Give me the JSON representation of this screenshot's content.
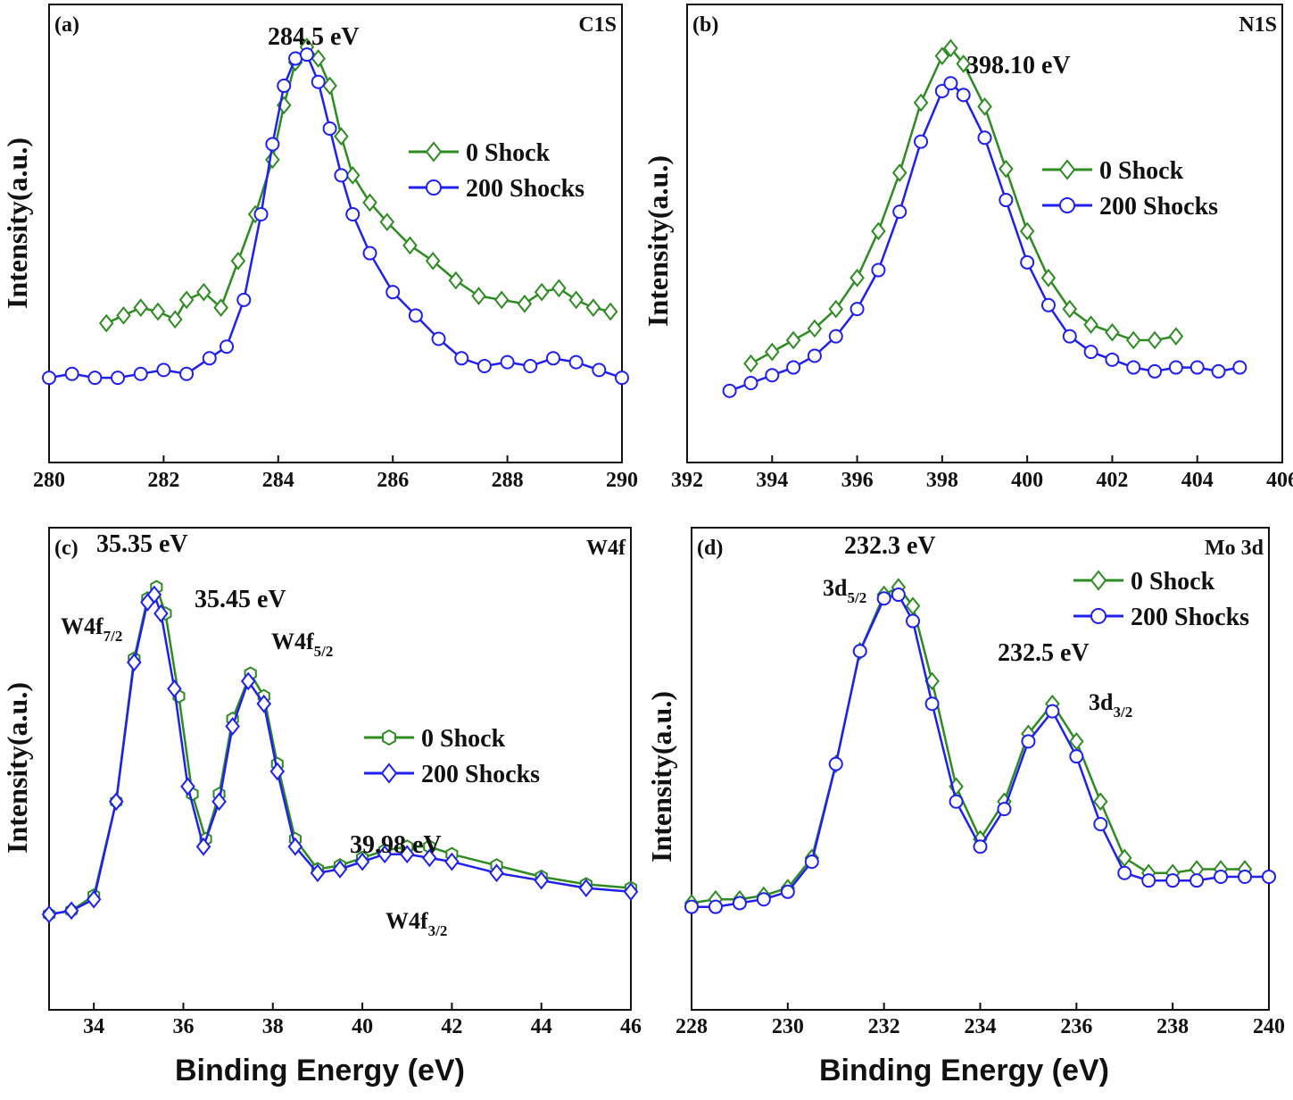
{
  "colors": {
    "series0": "#2e8b22",
    "series1": "#1f1fef",
    "axis": "#111111"
  },
  "chart_data": [
    {
      "id": "a",
      "type": "line",
      "panel_label": "(a)",
      "title": "C1S",
      "xlabel": "",
      "ylabel": "Intensity(a.u.)",
      "xlim": [
        280,
        290
      ],
      "ylim": [
        0,
        1
      ],
      "xticks": [
        "280",
        "282",
        "284",
        "286",
        "288",
        "290"
      ],
      "legend": {
        "position": "top-right",
        "entries": [
          "0 Shock",
          "200 Shocks"
        ]
      },
      "annotations": [
        {
          "text": "284.5 eV",
          "x": 284.5,
          "y": 0.98
        }
      ],
      "series": [
        {
          "name": "0 Shock",
          "marker": "diamond",
          "x": [
            281.0,
            281.3,
            281.6,
            281.9,
            282.2,
            282.4,
            282.7,
            283.0,
            283.3,
            283.6,
            283.9,
            284.1,
            284.3,
            284.5,
            284.7,
            284.9,
            285.1,
            285.3,
            285.6,
            285.9,
            286.3,
            286.7,
            287.1,
            287.5,
            287.9,
            288.3,
            288.6,
            288.9,
            289.2,
            289.5,
            289.8
          ],
          "values": [
            0.24,
            0.26,
            0.28,
            0.27,
            0.25,
            0.3,
            0.32,
            0.28,
            0.4,
            0.52,
            0.66,
            0.8,
            0.91,
            0.95,
            0.92,
            0.85,
            0.72,
            0.62,
            0.55,
            0.5,
            0.44,
            0.4,
            0.35,
            0.31,
            0.3,
            0.29,
            0.32,
            0.33,
            0.3,
            0.28,
            0.27
          ]
        },
        {
          "name": "200 Shocks",
          "marker": "circle",
          "x": [
            280.0,
            280.4,
            280.8,
            281.2,
            281.6,
            282.0,
            282.4,
            282.8,
            283.1,
            283.4,
            283.7,
            283.9,
            284.1,
            284.3,
            284.5,
            284.7,
            284.9,
            285.1,
            285.3,
            285.6,
            286.0,
            286.4,
            286.8,
            287.2,
            287.6,
            288.0,
            288.4,
            288.8,
            289.2,
            289.6,
            290.0
          ],
          "values": [
            0.1,
            0.11,
            0.1,
            0.1,
            0.11,
            0.12,
            0.11,
            0.15,
            0.18,
            0.3,
            0.52,
            0.7,
            0.85,
            0.92,
            0.93,
            0.86,
            0.74,
            0.62,
            0.52,
            0.42,
            0.32,
            0.26,
            0.2,
            0.15,
            0.13,
            0.14,
            0.13,
            0.15,
            0.14,
            0.12,
            0.1
          ]
        }
      ]
    },
    {
      "id": "b",
      "type": "line",
      "panel_label": "(b)",
      "title": "N1S",
      "xlabel": "",
      "ylabel": "Intensity(a.u.)",
      "xlim": [
        392,
        406
      ],
      "ylim": [
        0,
        1
      ],
      "xticks": [
        "392",
        "394",
        "396",
        "398",
        "400",
        "402",
        "404",
        "406"
      ],
      "legend": {
        "position": "center-right",
        "entries": [
          "0 Shock",
          "200 Shocks"
        ]
      },
      "annotations": [
        {
          "text": "398.10 eV",
          "x": 398.5,
          "y": 0.97
        }
      ],
      "series": [
        {
          "name": "0 Shock",
          "marker": "diamond",
          "x": [
            393.5,
            394.0,
            394.5,
            395.0,
            395.5,
            396.0,
            396.5,
            397.0,
            397.5,
            398.0,
            398.2,
            398.5,
            399.0,
            399.5,
            400.0,
            400.5,
            401.0,
            401.5,
            402.0,
            402.5,
            403.0,
            403.5
          ],
          "values": [
            0.16,
            0.19,
            0.22,
            0.25,
            0.3,
            0.38,
            0.5,
            0.65,
            0.83,
            0.95,
            0.97,
            0.93,
            0.82,
            0.66,
            0.5,
            0.38,
            0.3,
            0.26,
            0.24,
            0.22,
            0.22,
            0.23
          ]
        },
        {
          "name": "200 Shocks",
          "marker": "circle",
          "x": [
            393.0,
            393.5,
            394.0,
            394.5,
            395.0,
            395.5,
            396.0,
            396.5,
            397.0,
            397.5,
            398.0,
            398.2,
            398.5,
            399.0,
            399.5,
            400.0,
            400.5,
            401.0,
            401.5,
            402.0,
            402.5,
            403.0,
            403.5,
            404.0,
            404.5,
            405.0
          ],
          "values": [
            0.09,
            0.11,
            0.13,
            0.15,
            0.18,
            0.23,
            0.3,
            0.4,
            0.55,
            0.73,
            0.86,
            0.88,
            0.85,
            0.74,
            0.58,
            0.42,
            0.31,
            0.23,
            0.19,
            0.17,
            0.15,
            0.14,
            0.15,
            0.15,
            0.14,
            0.15
          ]
        }
      ]
    },
    {
      "id": "c",
      "type": "line",
      "panel_label": "(c)",
      "title": "W4f",
      "xlabel": "Binding Energy (eV)",
      "ylabel": "Intensity(a.u.)",
      "xlim": [
        33,
        46
      ],
      "ylim": [
        0,
        1
      ],
      "xticks": [
        "34",
        "36",
        "38",
        "40",
        "42",
        "44",
        "46"
      ],
      "legend": {
        "position": "center-right",
        "entries": [
          "0 Shock",
          "200 Shocks"
        ]
      },
      "annotations": [
        {
          "text": "35.35 eV",
          "x": 35.4,
          "y": 1.0
        },
        {
          "text": "35.45 eV",
          "x": 37.6,
          "y": 0.88
        },
        {
          "text": "39.98 eV",
          "x": 40.8,
          "y": 0.33
        }
      ],
      "peak_labels": [
        {
          "main": "W4f",
          "sub": "7/2",
          "x": 34.3,
          "y": 0.78
        },
        {
          "main": "W4f",
          "sub": "5/2",
          "x": 38.5,
          "y": 0.74
        },
        {
          "main": "W4f",
          "sub": "3/2",
          "x": 41.5,
          "y": 0.08
        }
      ],
      "series": [
        {
          "name": "0 Shock",
          "marker": "hexagon",
          "x": [
            33.0,
            33.5,
            34.0,
            34.5,
            34.9,
            35.2,
            35.4,
            35.6,
            35.9,
            36.2,
            36.5,
            36.8,
            37.1,
            37.5,
            37.8,
            38.1,
            38.5,
            39.0,
            39.5,
            40.0,
            40.5,
            41.0,
            41.5,
            42.0,
            43.0,
            44.0,
            45.0,
            46.0
          ],
          "values": [
            0.1,
            0.11,
            0.15,
            0.4,
            0.78,
            0.94,
            0.97,
            0.9,
            0.68,
            0.42,
            0.3,
            0.42,
            0.62,
            0.74,
            0.68,
            0.5,
            0.3,
            0.22,
            0.23,
            0.25,
            0.27,
            0.28,
            0.28,
            0.26,
            0.23,
            0.2,
            0.18,
            0.17
          ]
        },
        {
          "name": "200 Shocks",
          "marker": "diamond",
          "x": [
            33.0,
            33.5,
            34.0,
            34.5,
            34.9,
            35.2,
            35.35,
            35.5,
            35.8,
            36.1,
            36.45,
            36.8,
            37.1,
            37.45,
            37.8,
            38.1,
            38.5,
            39.0,
            39.5,
            40.0,
            40.5,
            41.0,
            41.5,
            42.0,
            43.0,
            44.0,
            45.0,
            46.0
          ],
          "values": [
            0.1,
            0.11,
            0.14,
            0.4,
            0.77,
            0.93,
            0.95,
            0.9,
            0.7,
            0.44,
            0.28,
            0.4,
            0.6,
            0.72,
            0.66,
            0.48,
            0.28,
            0.21,
            0.22,
            0.24,
            0.26,
            0.26,
            0.25,
            0.24,
            0.21,
            0.19,
            0.17,
            0.16
          ]
        }
      ]
    },
    {
      "id": "d",
      "type": "line",
      "panel_label": "(d)",
      "title": "Mo 3d",
      "xlabel": "Binding Energy (eV)",
      "ylabel": "Intensity(a.u.)",
      "xlim": [
        228,
        240
      ],
      "ylim": [
        0,
        1
      ],
      "xticks": [
        "228",
        "230",
        "232",
        "234",
        "236",
        "238",
        "240"
      ],
      "legend": {
        "position": "top-right",
        "entries": [
          "0 Shock",
          "200 Shocks"
        ]
      },
      "annotations": [
        {
          "text": "232.3 eV",
          "x": 232.4,
          "y": 1.0
        },
        {
          "text": "232.5 eV",
          "x": 235.7,
          "y": 0.68
        }
      ],
      "peak_labels": [
        {
          "main": "3d",
          "sub": "5/2",
          "x": 231.5,
          "y": 0.88
        },
        {
          "main": "3d",
          "sub": "3/2",
          "x": 236.6,
          "y": 0.58
        }
      ],
      "series": [
        {
          "name": "0 Shock",
          "marker": "diamond",
          "x": [
            228.0,
            228.5,
            229.0,
            229.5,
            230.0,
            230.5,
            231.0,
            231.5,
            232.0,
            232.3,
            232.6,
            233.0,
            233.5,
            234.0,
            234.5,
            235.0,
            235.5,
            236.0,
            236.5,
            237.0,
            237.5,
            238.0,
            238.5,
            239.0,
            239.5
          ],
          "values": [
            0.13,
            0.14,
            0.14,
            0.15,
            0.17,
            0.25,
            0.5,
            0.8,
            0.95,
            0.97,
            0.92,
            0.72,
            0.44,
            0.3,
            0.4,
            0.58,
            0.66,
            0.56,
            0.4,
            0.25,
            0.21,
            0.21,
            0.22,
            0.22,
            0.22
          ]
        },
        {
          "name": "200 Shocks",
          "marker": "circle",
          "x": [
            228.0,
            228.5,
            229.0,
            229.5,
            230.0,
            230.5,
            231.0,
            231.5,
            232.0,
            232.3,
            232.6,
            233.0,
            233.5,
            234.0,
            234.5,
            235.0,
            235.5,
            236.0,
            236.5,
            237.0,
            237.5,
            238.0,
            238.5,
            239.0,
            239.5,
            240.0
          ],
          "values": [
            0.12,
            0.12,
            0.13,
            0.14,
            0.16,
            0.24,
            0.5,
            0.8,
            0.94,
            0.95,
            0.88,
            0.66,
            0.4,
            0.28,
            0.38,
            0.56,
            0.64,
            0.52,
            0.34,
            0.21,
            0.19,
            0.19,
            0.19,
            0.2,
            0.2,
            0.2
          ]
        }
      ]
    }
  ]
}
